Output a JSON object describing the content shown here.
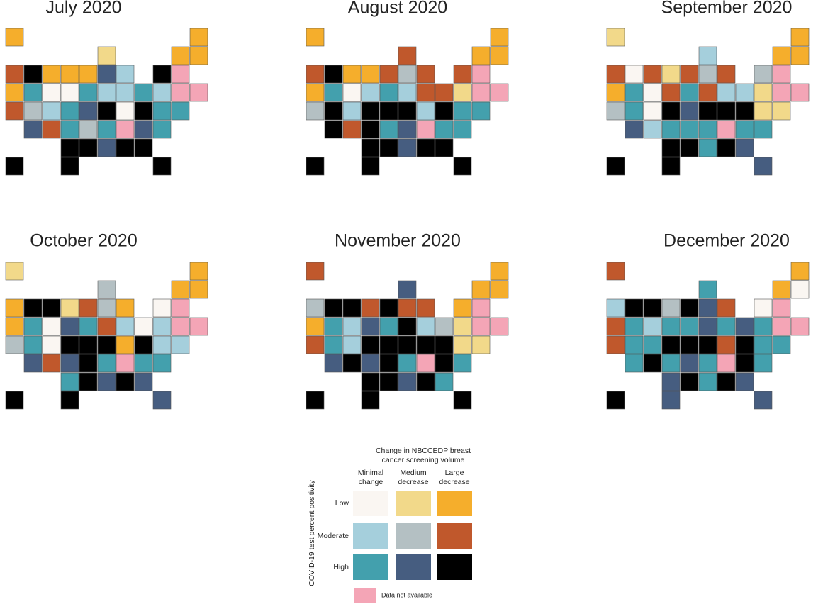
{
  "maps": [
    {
      "title": "July 2020",
      "states": [
        2,
        2,
        1,
        2,
        2,
        5,
        8,
        2,
        2,
        2,
        7,
        3,
        8,
        9,
        2,
        6,
        0,
        0,
        6,
        3,
        3,
        6,
        3,
        9,
        9,
        5,
        4,
        3,
        6,
        7,
        8,
        0,
        8,
        6,
        6,
        7,
        5,
        6,
        4,
        6,
        9,
        7,
        6,
        8,
        8,
        7,
        8,
        8,
        8,
        8,
        8
      ]
    },
    {
      "title": "August 2020",
      "states": [
        2,
        2,
        5,
        2,
        2,
        5,
        8,
        2,
        2,
        5,
        4,
        5,
        5,
        9,
        2,
        6,
        0,
        3,
        6,
        3,
        5,
        5,
        1,
        9,
        9,
        4,
        8,
        3,
        8,
        8,
        8,
        3,
        8,
        6,
        6,
        8,
        5,
        8,
        6,
        7,
        9,
        6,
        6,
        8,
        8,
        7,
        8,
        8,
        8,
        8,
        8
      ]
    },
    {
      "title": "September 2020",
      "states": [
        1,
        2,
        3,
        2,
        2,
        5,
        0,
        5,
        1,
        5,
        4,
        5,
        4,
        9,
        2,
        6,
        0,
        5,
        6,
        5,
        3,
        3,
        1,
        9,
        9,
        4,
        6,
        0,
        8,
        7,
        8,
        8,
        8,
        1,
        1,
        7,
        3,
        6,
        6,
        6,
        9,
        6,
        6,
        8,
        8,
        6,
        8,
        7,
        8,
        8,
        7
      ]
    },
    {
      "title": "October 2020",
      "states": [
        1,
        2,
        4,
        2,
        2,
        2,
        8,
        8,
        1,
        5,
        4,
        2,
        0,
        9,
        2,
        6,
        0,
        7,
        6,
        5,
        3,
        0,
        3,
        9,
        9,
        4,
        6,
        0,
        8,
        8,
        8,
        2,
        8,
        3,
        3,
        7,
        5,
        7,
        8,
        6,
        9,
        6,
        6,
        6,
        8,
        7,
        8,
        7,
        8,
        8,
        7
      ]
    },
    {
      "title": "November 2020",
      "states": [
        5,
        2,
        7,
        2,
        2,
        4,
        8,
        8,
        5,
        8,
        5,
        5,
        2,
        9,
        2,
        6,
        3,
        7,
        6,
        8,
        3,
        4,
        1,
        9,
        9,
        5,
        6,
        3,
        8,
        8,
        8,
        8,
        8,
        1,
        1,
        7,
        8,
        7,
        8,
        6,
        9,
        8,
        6,
        8,
        8,
        7,
        8,
        6,
        8,
        8,
        8
      ]
    },
    {
      "title": "December 2020",
      "states": [
        5,
        2,
        6,
        2,
        0,
        3,
        8,
        8,
        4,
        8,
        7,
        5,
        0,
        9,
        5,
        6,
        3,
        6,
        6,
        7,
        6,
        7,
        6,
        9,
        9,
        5,
        6,
        6,
        8,
        8,
        8,
        5,
        8,
        6,
        6,
        6,
        8,
        6,
        7,
        6,
        9,
        8,
        6,
        7,
        8,
        6,
        8,
        7,
        8,
        7,
        7
      ]
    }
  ],
  "legend": {
    "title": [
      "Change in NBCCEDP breast",
      "cancer screening volume"
    ],
    "columns": [
      [
        "Minimal",
        "change"
      ],
      [
        "Medium",
        "decrease"
      ],
      [
        "Large",
        "decrease"
      ]
    ],
    "rows": [
      "Low",
      "Moderate",
      "High"
    ],
    "y_label": "COVID-19 test percent positivity",
    "colors": [
      "#faf6f2",
      "#f2d98a",
      "#f5ae2c",
      "#a5cfdc",
      "#b4c0c3",
      "#c0582c",
      "#43a0ad",
      "#465d80",
      "#000000"
    ],
    "na": {
      "color": "#f4a5b6",
      "label": "Data not available"
    }
  }
}
